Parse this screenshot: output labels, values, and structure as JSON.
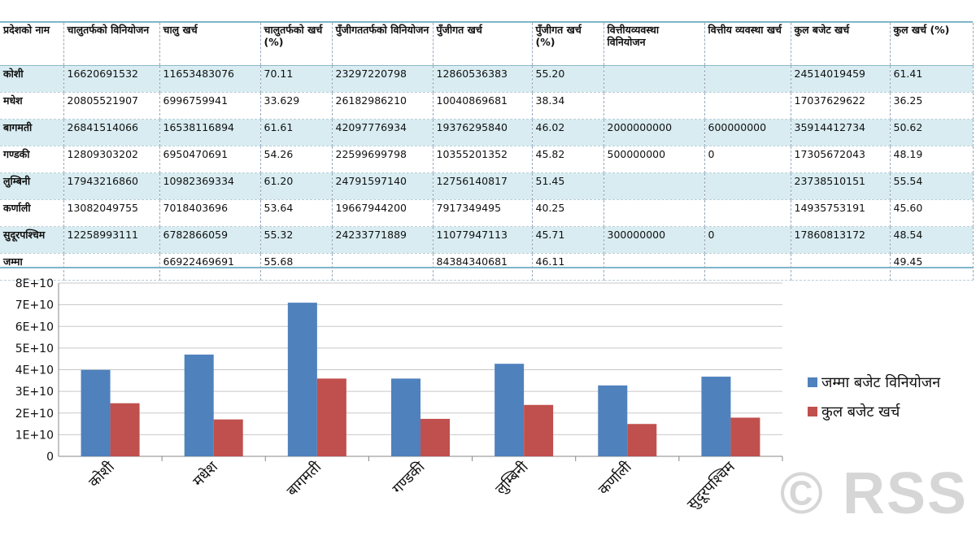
{
  "table": {
    "headers": [
      "प्रदेशको नाम",
      "चालुतर्फको विनियोजन",
      "चालु खर्च",
      "चालुतर्फको खर्च (%)",
      "पुँजीगततर्फको विनियोजन",
      "पुँजीगत खर्च",
      "पुँजीगत खर्च (%)",
      "वित्तीयव्यवस्था विनियोजन",
      "वित्तीय व्यवस्था खर्च",
      "कुल बजेट खर्च",
      "कुल खर्च (%)"
    ],
    "rows": [
      [
        "कोशी",
        "16620691532",
        "11653483076",
        "70.11",
        "23297220798",
        "12860536383",
        "55.20",
        "",
        "",
        "24514019459",
        "61.41"
      ],
      [
        "मधेश",
        "20805521907",
        "6996759941",
        "33.629",
        "26182986210",
        "10040869681",
        "38.34",
        "",
        "",
        "17037629622",
        "36.25"
      ],
      [
        "बागमती",
        "26841514066",
        "16538116894",
        "61.61",
        "42097776934",
        "19376295840",
        "46.02",
        "2000000000",
        "600000000",
        "35914412734",
        "50.62"
      ],
      [
        "गण्डकी",
        "12809303202",
        "6950470691",
        "54.26",
        "22599699798",
        "10355201352",
        "45.82",
        "500000000",
        "0",
        "17305672043",
        "48.19"
      ],
      [
        "लुम्बिनी",
        "17943216860",
        "10982369334",
        "61.20",
        "24791597140",
        "12756140817",
        "51.45",
        "",
        "",
        "23738510151",
        "55.54"
      ],
      [
        "कर्णाली",
        "13082049755",
        "7018403696",
        "53.64",
        "19667944200",
        "7917349495",
        "40.25",
        "",
        "",
        "14935753191",
        "45.60"
      ],
      [
        "सुदूरपश्चिम",
        "12258993111",
        "6782866059",
        "55.32",
        "24233771889",
        "11077947113",
        "45.71",
        "300000000",
        "0",
        "17860813172",
        "48.54"
      ],
      [
        "जम्मा",
        "",
        "66922469691",
        "55.68",
        "",
        "84384340681",
        "46.11",
        "",
        "",
        "",
        "49.45"
      ]
    ]
  },
  "chart_data": {
    "type": "bar",
    "categories": [
      "कोशी",
      "मधेश",
      "बागमती",
      "गण्डकी",
      "लुम्बिनी",
      "कर्णाली",
      "सुदूरपश्चिम"
    ],
    "series": [
      {
        "name": "जम्मा बजेट विनियोजन",
        "color": "#4f81bd",
        "values": [
          39917912330,
          46988508117,
          70939291000,
          35909003000,
          42734814000,
          32749993955,
          36792765000
        ]
      },
      {
        "name": "कुल बजेट खर्च",
        "color": "#c0504d",
        "values": [
          24514019459,
          17037629622,
          35914412734,
          17305672043,
          23738510151,
          14935753191,
          17860813172
        ]
      }
    ],
    "yticks": [
      "0",
      "1E+10",
      "2E+10",
      "3E+10",
      "4E+10",
      "5E+10",
      "6E+10",
      "7E+10",
      "8E+10"
    ],
    "ylim": [
      0,
      80000000000
    ],
    "grid": true,
    "legend": "right"
  },
  "watermark": "© RSS"
}
